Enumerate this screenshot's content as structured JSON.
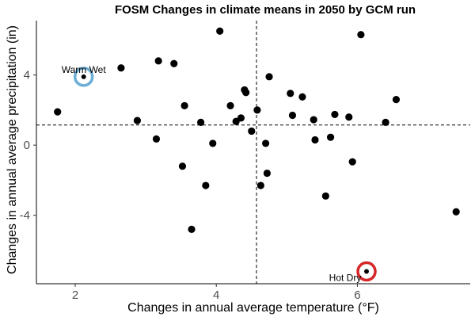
{
  "chart_data": {
    "type": "scatter",
    "title": "FOSM Changes in climate means in 2050 by GCM run",
    "xlabel": "Changes in annual average temperature (°F)",
    "ylabel": "Changes in annual average precipitation (in)",
    "xlim": [
      1.45,
      7.6
    ],
    "ylim": [
      -7.9,
      7.1
    ],
    "x_ticks": [
      2,
      4,
      6
    ],
    "y_ticks": [
      -4,
      0,
      4
    ],
    "grid": false,
    "mean_lines": {
      "x": 4.57,
      "y": 1.15
    },
    "points": [
      {
        "x": 1.75,
        "y": 1.9
      },
      {
        "x": 2.12,
        "y": 3.9
      },
      {
        "x": 2.65,
        "y": 4.4
      },
      {
        "x": 2.88,
        "y": 1.4
      },
      {
        "x": 3.15,
        "y": 0.35
      },
      {
        "x": 3.18,
        "y": 4.8
      },
      {
        "x": 3.4,
        "y": 4.65
      },
      {
        "x": 3.52,
        "y": -1.2
      },
      {
        "x": 3.55,
        "y": 2.25
      },
      {
        "x": 3.65,
        "y": -4.8
      },
      {
        "x": 3.78,
        "y": 1.3
      },
      {
        "x": 3.85,
        "y": -2.3
      },
      {
        "x": 3.95,
        "y": 0.1
      },
      {
        "x": 4.05,
        "y": 6.5
      },
      {
        "x": 4.2,
        "y": 2.25
      },
      {
        "x": 4.28,
        "y": 1.35
      },
      {
        "x": 4.35,
        "y": 1.55
      },
      {
        "x": 4.4,
        "y": 3.15
      },
      {
        "x": 4.42,
        "y": 3.0
      },
      {
        "x": 4.5,
        "y": 0.8
      },
      {
        "x": 4.58,
        "y": 2.0
      },
      {
        "x": 4.63,
        "y": -2.3
      },
      {
        "x": 4.7,
        "y": 0.1
      },
      {
        "x": 4.72,
        "y": -1.6
      },
      {
        "x": 4.75,
        "y": 3.9
      },
      {
        "x": 5.05,
        "y": 2.95
      },
      {
        "x": 5.08,
        "y": 1.7
      },
      {
        "x": 5.22,
        "y": 2.75
      },
      {
        "x": 5.38,
        "y": 1.45
      },
      {
        "x": 5.4,
        "y": 0.3
      },
      {
        "x": 5.55,
        "y": -2.9
      },
      {
        "x": 5.62,
        "y": 0.45
      },
      {
        "x": 5.68,
        "y": 1.75
      },
      {
        "x": 5.88,
        "y": 1.6
      },
      {
        "x": 5.93,
        "y": -0.95
      },
      {
        "x": 6.05,
        "y": 6.3
      },
      {
        "x": 6.13,
        "y": -7.2
      },
      {
        "x": 6.4,
        "y": 1.3
      },
      {
        "x": 6.55,
        "y": 2.6
      },
      {
        "x": 7.4,
        "y": -3.8
      }
    ],
    "highlights": [
      {
        "label": "Warm Wet",
        "x": 2.12,
        "y": 3.9,
        "color": "#6baed6"
      },
      {
        "label": "Hot Dry",
        "x": 6.13,
        "y": -7.2,
        "color": "#d62728"
      }
    ]
  }
}
